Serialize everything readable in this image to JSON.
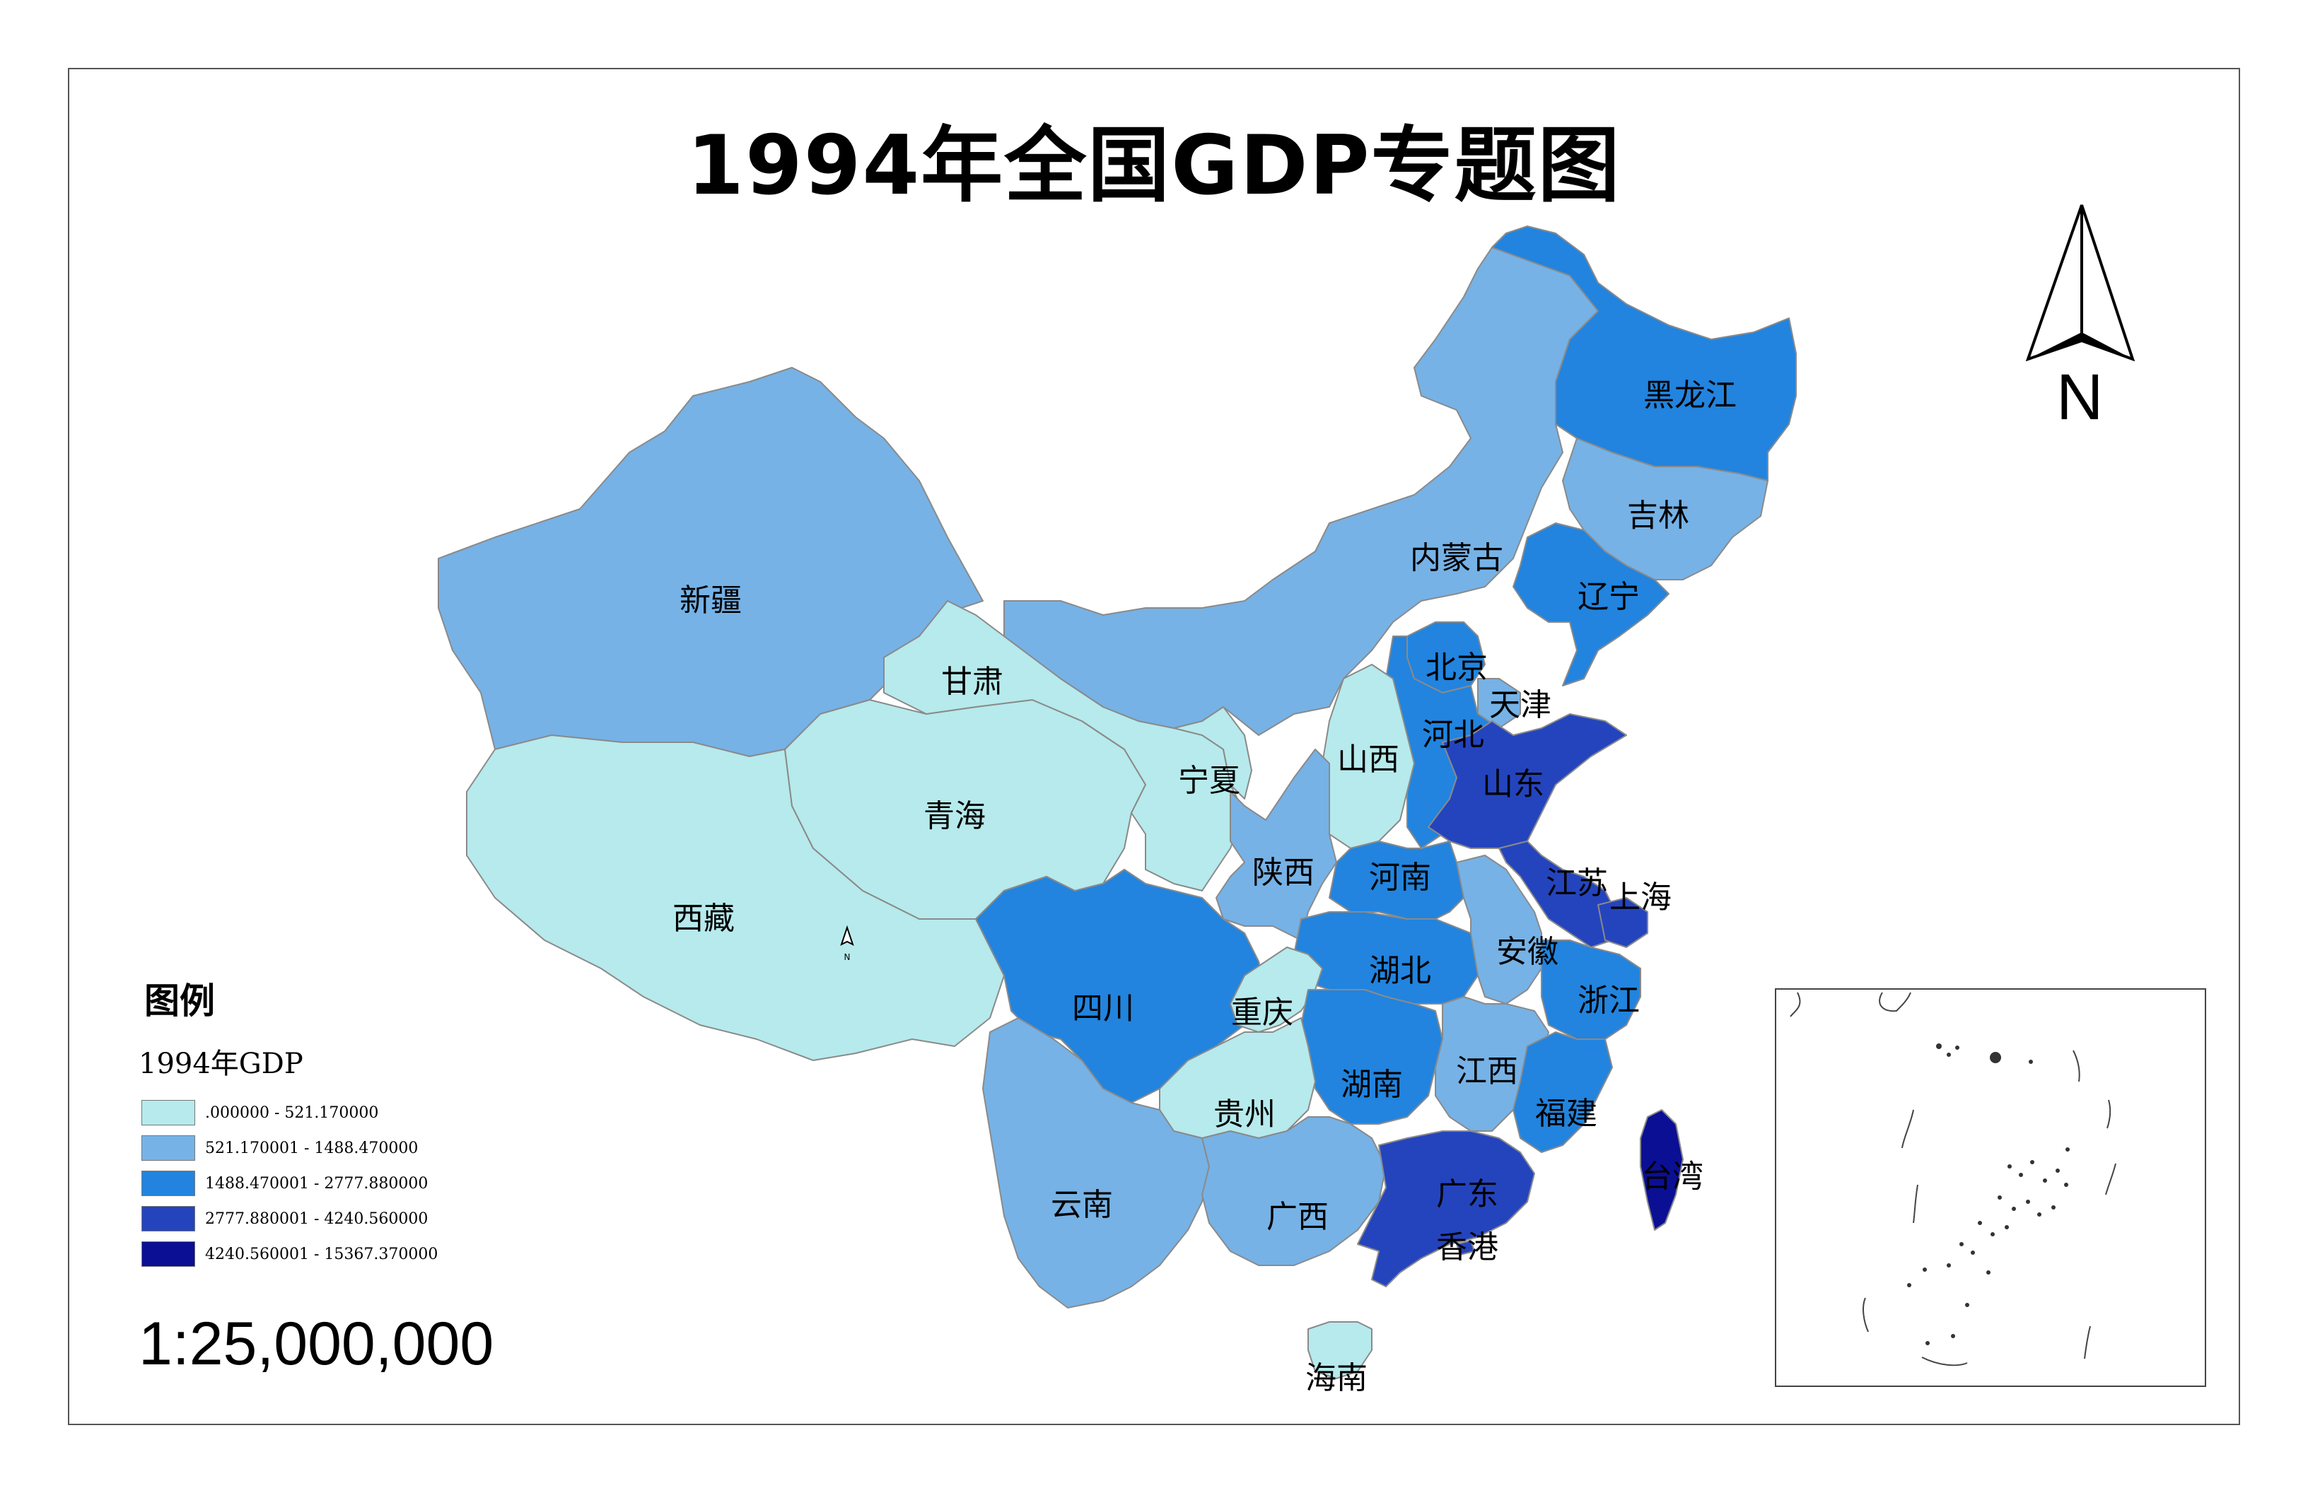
{
  "title": "1994年全国GDP专题图",
  "north_label": "N",
  "small_north_label": "N",
  "scale": "1:25,000,000",
  "legend": {
    "title": "图例",
    "field": "1994年GDP",
    "classes": [
      {
        "label": ".000000 - 521.170000",
        "color": "#b6eaec"
      },
      {
        "label": "521.170001 - 1488.470000",
        "color": "#76b2e6"
      },
      {
        "label": "1488.470001 - 2777.880000",
        "color": "#2284de"
      },
      {
        "label": "2777.880001 - 4240.560000",
        "color": "#2444be"
      },
      {
        "label": "4240.560001 - 15367.370000",
        "color": "#0b0f94"
      }
    ]
  },
  "provinces": [
    {
      "name": "新疆",
      "class": 1
    },
    {
      "name": "西藏",
      "class": 0
    },
    {
      "name": "青海",
      "class": 0
    },
    {
      "name": "甘肃",
      "class": 0
    },
    {
      "name": "宁夏",
      "class": 0
    },
    {
      "name": "内蒙古",
      "class": 1
    },
    {
      "name": "黑龙江",
      "class": 2
    },
    {
      "name": "吉林",
      "class": 1
    },
    {
      "name": "辽宁",
      "class": 2
    },
    {
      "name": "北京",
      "class": 2
    },
    {
      "name": "天津",
      "class": 1
    },
    {
      "name": "河北",
      "class": 2
    },
    {
      "name": "山西",
      "class": 0
    },
    {
      "name": "山东",
      "class": 3
    },
    {
      "name": "陕西",
      "class": 1
    },
    {
      "name": "河南",
      "class": 2
    },
    {
      "name": "江苏",
      "class": 3
    },
    {
      "name": "上海",
      "class": 3
    },
    {
      "name": "安徽",
      "class": 1
    },
    {
      "name": "湖北",
      "class": 2
    },
    {
      "name": "四川",
      "class": 2
    },
    {
      "name": "重庆",
      "class": 0
    },
    {
      "name": "浙江",
      "class": 2
    },
    {
      "name": "湖南",
      "class": 2
    },
    {
      "name": "江西",
      "class": 1
    },
    {
      "name": "贵州",
      "class": 0
    },
    {
      "name": "福建",
      "class": 2
    },
    {
      "name": "云南",
      "class": 1
    },
    {
      "name": "广西",
      "class": 1
    },
    {
      "name": "广东",
      "class": 3
    },
    {
      "name": "香港",
      "class": 3
    },
    {
      "name": "台湾",
      "class": 4
    },
    {
      "name": "海南",
      "class": 0
    }
  ],
  "icons": [
    "north-arrow-icon",
    "small-north-arrow-icon"
  ]
}
